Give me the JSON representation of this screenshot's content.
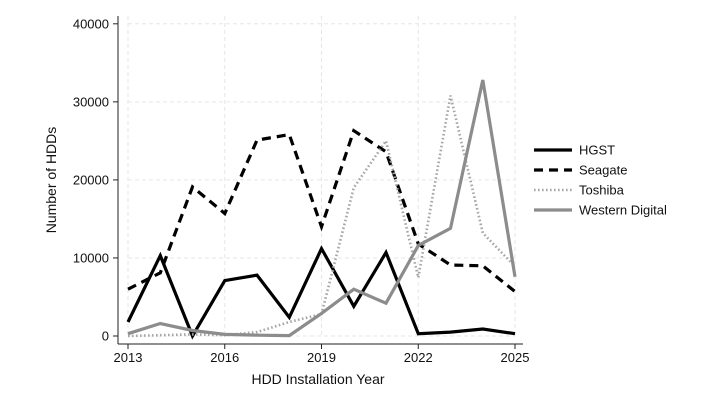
{
  "chart_data": {
    "type": "line",
    "title": "",
    "xlabel": "HDD Installation Year",
    "ylabel": "Number of HDDs",
    "x": [
      2013,
      2014,
      2015,
      2016,
      2017,
      2018,
      2019,
      2020,
      2021,
      2022,
      2023,
      2024,
      2025
    ],
    "xticks": [
      2013,
      2016,
      2019,
      2022,
      2025
    ],
    "yticks": [
      0,
      10000,
      20000,
      30000,
      40000
    ],
    "xlim": [
      2013,
      2025
    ],
    "ylim": [
      0,
      41000
    ],
    "grid": true,
    "legend_position": "right",
    "series": [
      {
        "name": "HGST",
        "color": "#000000",
        "style": "solid",
        "values": [
          1800,
          10300,
          0,
          7100,
          7800,
          2400,
          11200,
          3800,
          10700,
          300,
          500,
          900,
          300
        ]
      },
      {
        "name": "Seagate",
        "color": "#000000",
        "style": "dashed",
        "values": [
          6000,
          8100,
          19100,
          15700,
          25100,
          25800,
          14000,
          26300,
          23600,
          11800,
          9100,
          9000,
          5700
        ]
      },
      {
        "name": "Toshiba",
        "color": "#a6a6a6",
        "style": "dotted",
        "values": [
          0,
          100,
          200,
          100,
          500,
          1800,
          2800,
          19000,
          25000,
          7500,
          30800,
          13200,
          8900
        ]
      },
      {
        "name": "Western Digital",
        "color": "#8c8c8c",
        "style": "solid",
        "values": [
          300,
          1600,
          700,
          200,
          100,
          50,
          2900,
          6000,
          4200,
          11600,
          13800,
          32800,
          7600
        ]
      }
    ]
  }
}
